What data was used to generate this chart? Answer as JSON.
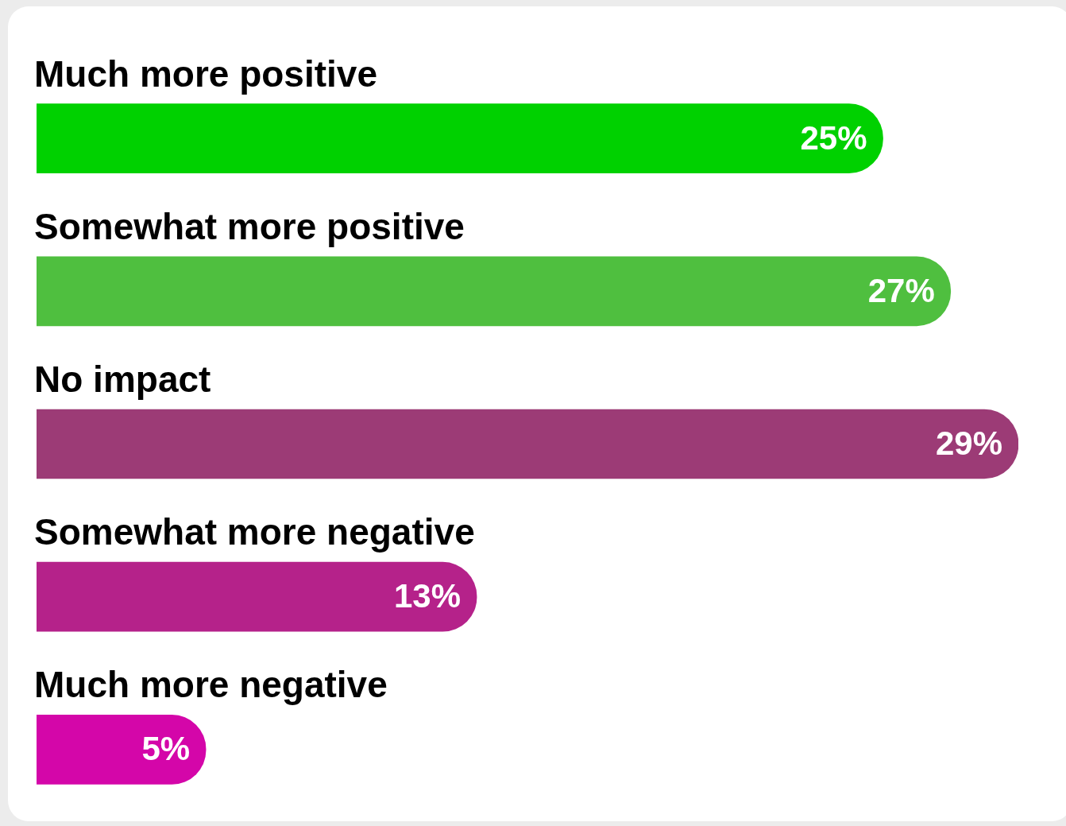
{
  "chart_data": {
    "type": "bar",
    "orientation": "horizontal",
    "categories": [
      "Much more positive",
      "Somewhat more positive",
      "No impact",
      "Somewhat more negative",
      "Much more negative"
    ],
    "values": [
      25,
      27,
      29,
      13,
      5
    ],
    "colors": [
      "#00d100",
      "#4fbf3f",
      "#9c3b76",
      "#b5228a",
      "#d406a9"
    ],
    "value_labels": [
      "25%",
      "27%",
      "29%",
      "13%",
      "5%"
    ]
  }
}
